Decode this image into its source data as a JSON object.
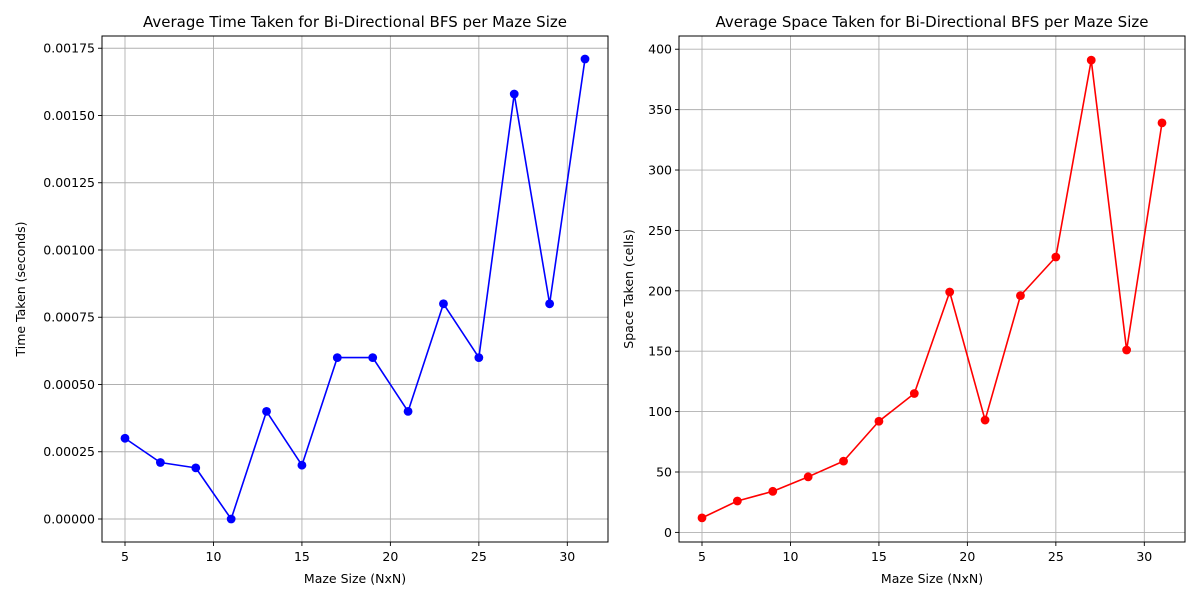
{
  "chart_data": [
    {
      "type": "line",
      "title": "Average Time Taken for Bi-Directional BFS per Maze Size",
      "xlabel": "Maze Size (NxN)",
      "ylabel": "Time Taken (seconds)",
      "x": [
        5,
        7,
        9,
        11,
        13,
        15,
        17,
        19,
        21,
        23,
        25,
        27,
        29,
        31
      ],
      "series": [
        {
          "values": [
            0.0003,
            0.00021,
            0.00019,
            0.0,
            0.0004,
            0.0002,
            0.0006,
            0.0006,
            0.0004,
            0.0008,
            0.0006,
            0.00158,
            0.0008,
            0.00171
          ]
        }
      ],
      "xlim": [
        3.7,
        32.3
      ],
      "ylim": [
        -8.55e-05,
        0.0017955
      ],
      "xticks": [
        5,
        10,
        15,
        20,
        25,
        30
      ],
      "yticks": [
        0,
        0.00025,
        0.0005,
        0.00075,
        0.001,
        0.00125,
        0.0015,
        0.00175
      ],
      "ytick_labels": [
        "0.00000",
        "0.00025",
        "0.00050",
        "0.00075",
        "0.00100",
        "0.00125",
        "0.00150",
        "0.00175"
      ],
      "color": "#0000ff",
      "marker": "circle",
      "grid": true
    },
    {
      "type": "line",
      "title": "Average Space Taken for Bi-Directional BFS per Maze Size",
      "xlabel": "Maze Size (NxN)",
      "ylabel": "Space Taken (cells)",
      "x": [
        5,
        7,
        9,
        11,
        13,
        15,
        17,
        19,
        21,
        23,
        25,
        27,
        29,
        31
      ],
      "series": [
        {
          "values": [
            12,
            26,
            34,
            46,
            59,
            92,
            115,
            199,
            93,
            196,
            228,
            391,
            151,
            339
          ]
        }
      ],
      "xlim": [
        3.7,
        32.3
      ],
      "ylim": [
        -7.95,
        410.95
      ],
      "xticks": [
        5,
        10,
        15,
        20,
        25,
        30
      ],
      "yticks": [
        0,
        50,
        100,
        150,
        200,
        250,
        300,
        350,
        400
      ],
      "ytick_labels": [
        "0",
        "50",
        "100",
        "150",
        "200",
        "250",
        "300",
        "350",
        "400"
      ],
      "color": "#ff0000",
      "marker": "circle",
      "grid": true
    }
  ]
}
